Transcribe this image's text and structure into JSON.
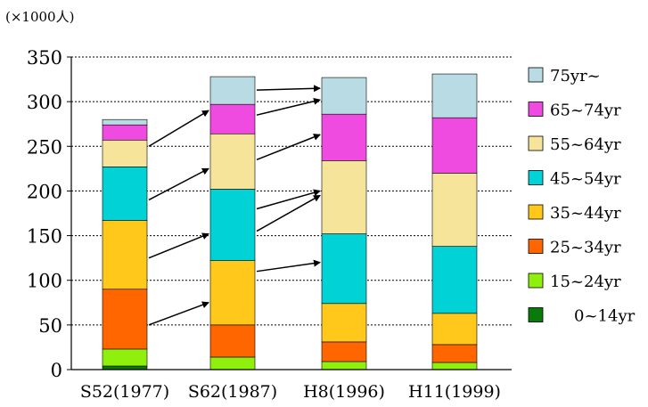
{
  "chart_data": {
    "type": "bar",
    "stacked": true,
    "unit_label": "(×1000人)",
    "categories": [
      "S52(1977)",
      "S62(1987)",
      "H8(1996)",
      "H11(1999)"
    ],
    "ylim": [
      0,
      350
    ],
    "yticks": [
      0,
      50,
      100,
      150,
      200,
      250,
      300,
      350
    ],
    "grid": true,
    "legend_position": "right",
    "series": [
      {
        "name": "0~14yr",
        "color": "#0a7a0a",
        "values": [
          4,
          0,
          0,
          0
        ]
      },
      {
        "name": "15~24yr",
        "color": "#8ef00c",
        "values": [
          19,
          14,
          9,
          8
        ]
      },
      {
        "name": "25~34yr",
        "color": "#ff6600",
        "values": [
          67,
          36,
          22,
          20
        ]
      },
      {
        "name": "35~44yr",
        "color": "#ffc81a",
        "values": [
          77,
          72,
          43,
          35
        ]
      },
      {
        "name": "45~54yr",
        "color": "#00d2d6",
        "values": [
          60,
          80,
          78,
          75
        ]
      },
      {
        "name": "55~64yr",
        "color": "#f5e49a",
        "values": [
          30,
          62,
          82,
          82
        ]
      },
      {
        "name": "65~74yr",
        "color": "#f04be0",
        "values": [
          17,
          33,
          52,
          62
        ]
      },
      {
        "name": "75yr~",
        "color": "#b9dce4",
        "values": [
          6,
          31,
          41,
          49
        ]
      }
    ],
    "arrows": [
      {
        "from_cat": 0,
        "from_val": 50,
        "to_cat": 1,
        "to_val": 75
      },
      {
        "from_cat": 0,
        "from_val": 125,
        "to_cat": 1,
        "to_val": 152
      },
      {
        "from_cat": 0,
        "from_val": 190,
        "to_cat": 1,
        "to_val": 225
      },
      {
        "from_cat": 0,
        "from_val": 250,
        "to_cat": 1,
        "to_val": 290
      },
      {
        "from_cat": 1,
        "from_val": 155,
        "to_cat": 2,
        "to_val": 195
      },
      {
        "from_cat": 1,
        "from_val": 180,
        "to_cat": 2,
        "to_val": 200
      },
      {
        "from_cat": 1,
        "from_val": 235,
        "to_cat": 2,
        "to_val": 263
      },
      {
        "from_cat": 1,
        "from_val": 285,
        "to_cat": 2,
        "to_val": 302
      },
      {
        "from_cat": 1,
        "from_val": 313,
        "to_cat": 2,
        "to_val": 315
      },
      {
        "from_cat": 1,
        "from_val": 110,
        "to_cat": 2,
        "to_val": 120
      }
    ]
  }
}
